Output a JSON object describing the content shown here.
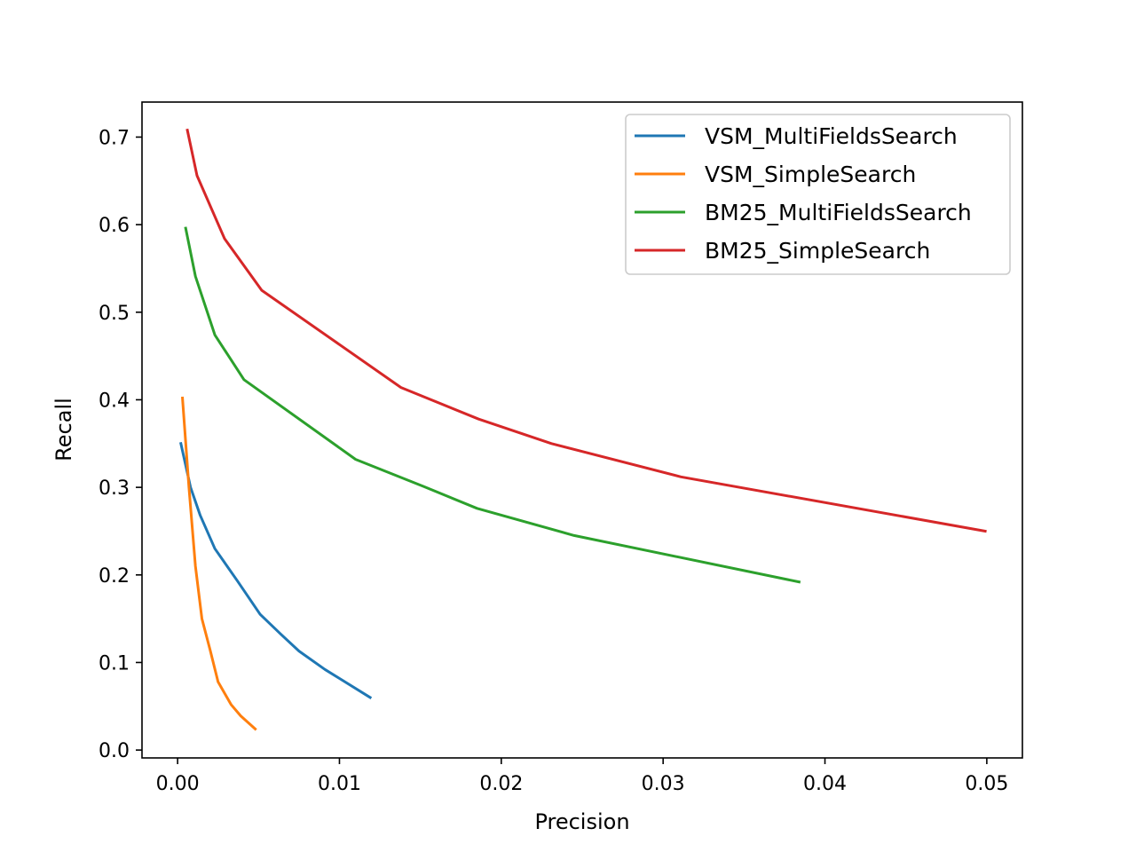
{
  "chart_data": {
    "type": "line",
    "xlabel": "Precision",
    "ylabel": "Recall",
    "xlim": [
      -0.0022,
      0.0522
    ],
    "ylim": [
      -0.009,
      0.74
    ],
    "xticks": [
      0.0,
      0.01,
      0.02,
      0.03,
      0.04,
      0.05
    ],
    "xtick_labels": [
      "0.00",
      "0.01",
      "0.02",
      "0.03",
      "0.04",
      "0.05"
    ],
    "yticks": [
      0.0,
      0.1,
      0.2,
      0.3,
      0.4,
      0.5,
      0.6,
      0.7
    ],
    "ytick_labels": [
      "0.0",
      "0.1",
      "0.2",
      "0.3",
      "0.4",
      "0.5",
      "0.6",
      "0.7"
    ],
    "grid": false,
    "legend_position": "top-right",
    "series": [
      {
        "name": "VSM_MultiFieldsSearch",
        "color": "#1f77b4",
        "x": [
          0.0002,
          0.0008,
          0.0014,
          0.0023,
          0.0037,
          0.0051,
          0.0064,
          0.0075,
          0.0091,
          0.0119
        ],
        "y": [
          0.35,
          0.3,
          0.268,
          0.23,
          0.193,
          0.155,
          0.132,
          0.113,
          0.092,
          0.06
        ]
      },
      {
        "name": "VSM_SimpleSearch",
        "color": "#ff7f0e",
        "x": [
          0.0003,
          0.0007,
          0.0011,
          0.0015,
          0.002,
          0.0025,
          0.0033,
          0.0039,
          0.0048
        ],
        "y": [
          0.402,
          0.3,
          0.21,
          0.15,
          0.115,
          0.078,
          0.052,
          0.039,
          0.024
        ]
      },
      {
        "name": "BM25_MultiFieldsSearch",
        "color": "#2ca02c",
        "x": [
          0.0005,
          0.0011,
          0.0023,
          0.0041,
          0.011,
          0.0152,
          0.0185,
          0.0245,
          0.0384
        ],
        "y": [
          0.596,
          0.541,
          0.474,
          0.423,
          0.332,
          0.301,
          0.276,
          0.245,
          0.192
        ]
      },
      {
        "name": "BM25_SimpleSearch",
        "color": "#d62728",
        "x": [
          0.0006,
          0.0012,
          0.0029,
          0.0052,
          0.0138,
          0.0186,
          0.0231,
          0.0311,
          0.0499
        ],
        "y": [
          0.708,
          0.656,
          0.584,
          0.525,
          0.414,
          0.378,
          0.35,
          0.312,
          0.25
        ]
      }
    ]
  }
}
